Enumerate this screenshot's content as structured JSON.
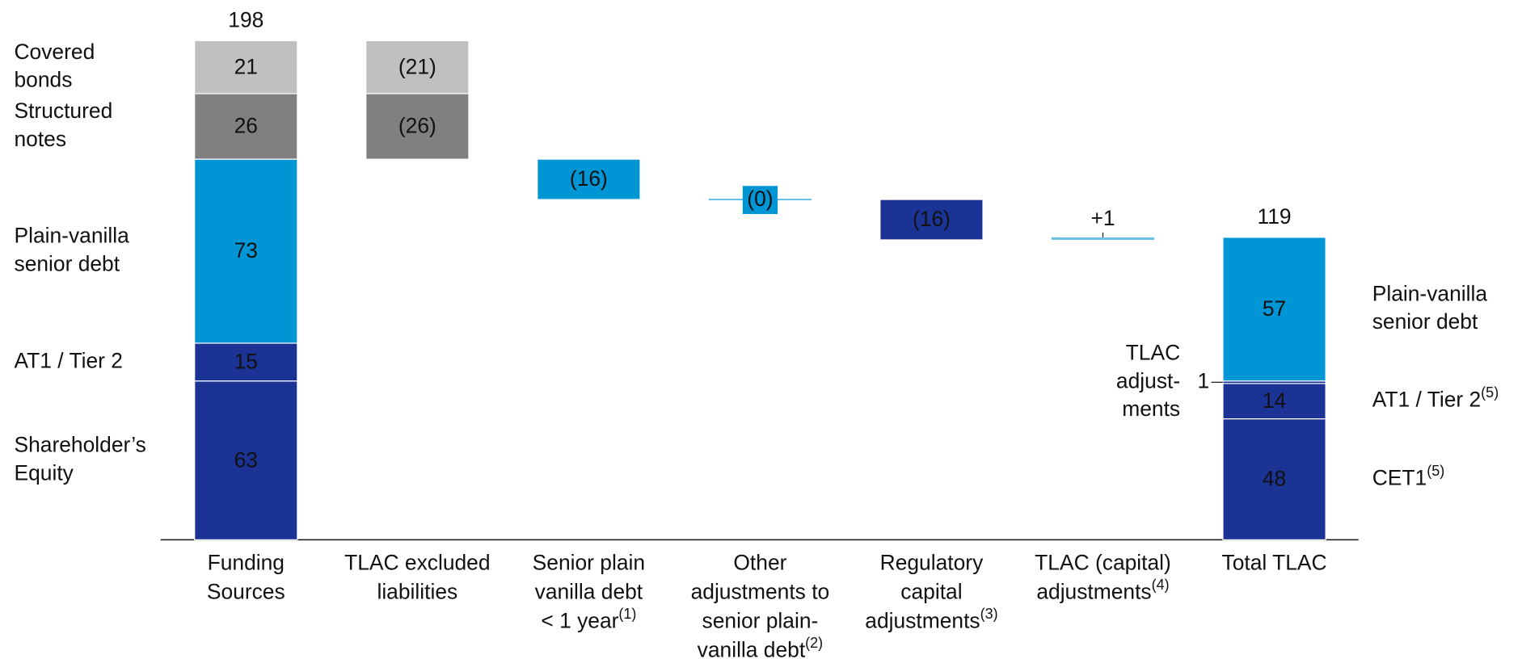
{
  "chart_data": {
    "type": "waterfall",
    "categories": [
      [
        "Funding",
        "Sources"
      ],
      [
        "TLAC excluded",
        "liabilities"
      ],
      [
        "Senior plain",
        "vanilla debt",
        "< 1 year"
      ],
      [
        "Other",
        "adjustments to",
        "senior plain-",
        "vanilla debt"
      ],
      [
        "Regulatory",
        "capital",
        "adjustments"
      ],
      [
        "TLAC (capital)",
        "adjustments"
      ],
      [
        "Total TLAC"
      ]
    ],
    "category_notes": [
      null,
      null,
      "(1)",
      "(2)",
      "(3)",
      "(4)",
      null
    ],
    "stacks": [
      {
        "category": 0,
        "total": 198,
        "label_side": "left",
        "segments": [
          {
            "name": [
              "Shareholder’s",
              "Equity"
            ],
            "note": null,
            "value": 63,
            "color": "#1b3394"
          },
          {
            "name": [
              "AT1 / Tier 2"
            ],
            "note": null,
            "value": 15,
            "color": "#1b3394"
          },
          {
            "name": [
              "Plain-vanilla",
              "senior debt"
            ],
            "note": null,
            "value": 73,
            "color": "#0096d6"
          },
          {
            "name": [
              "Structured",
              "notes"
            ],
            "note": null,
            "value": 26,
            "color": "#808080"
          },
          {
            "name": [
              "Covered",
              "bonds"
            ],
            "note": null,
            "value": 21,
            "color": "#c0c0c0"
          }
        ]
      },
      {
        "category": 6,
        "total": 119,
        "label_side": "right",
        "segments": [
          {
            "name": [
              "CET1"
            ],
            "note": "(5)",
            "value": 48,
            "color": "#1b3394"
          },
          {
            "name": [
              "AT1 / Tier 2"
            ],
            "note": "(5)",
            "value": 14,
            "color": "#1b3394"
          },
          {
            "name": [
              "TLAC",
              "adjust-",
              "ments"
            ],
            "note": null,
            "value": 1,
            "color": "#1b3394"
          },
          {
            "name": [
              "Plain-vanilla",
              "senior debt"
            ],
            "note": null,
            "value": 57,
            "color": "#0096d6"
          }
        ]
      }
    ],
    "steps": [
      {
        "category": 1,
        "values": [
          -21,
          -26
        ],
        "value_labels": [
          "(21)",
          "(26)"
        ],
        "colors": [
          "#c0c0c0",
          "#808080"
        ]
      },
      {
        "category": 2,
        "values": [
          -16
        ],
        "value_labels": [
          "(16)"
        ],
        "colors": [
          "#0096d6"
        ]
      },
      {
        "category": 3,
        "values": [
          0
        ],
        "value_labels": [
          "(0)"
        ],
        "colors": [
          "#0096d6"
        ]
      },
      {
        "category": 4,
        "values": [
          -16
        ],
        "value_labels": [
          "(16)"
        ],
        "colors": [
          "#1b3394"
        ]
      },
      {
        "category": 5,
        "values": [
          1
        ],
        "value_labels": [
          "+1"
        ],
        "colors": [
          "#6cc0e8"
        ]
      }
    ]
  }
}
